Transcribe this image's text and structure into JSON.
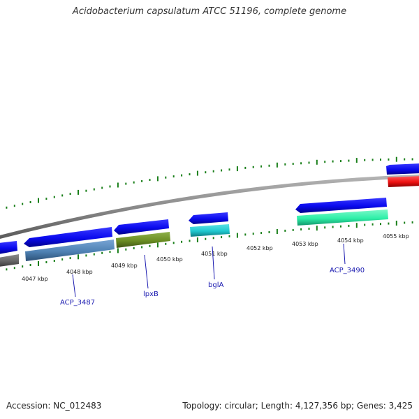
{
  "title": "Acidobacterium capsulatum ATCC 51196, complete genome",
  "footer": {
    "accession": "Accession: NC_012483",
    "summary": "Topology: circular; Length: 4,127,356 bp; Genes: 3,425"
  },
  "tick_labels": [
    "4047 kbp",
    "4048 kbp",
    "4049 kbp",
    "4050 kbp",
    "4051 kbp",
    "4052 kbp",
    "4053 kbp",
    "4054 kbp",
    "4055 kbp"
  ],
  "gene_labels": [
    "ACP_3487",
    "lpxB",
    "bglA",
    "ACP_3490"
  ],
  "colors": {
    "cds_forward": "#0a0aee",
    "backbone": "#8c8c8c",
    "tick": "#1a7f1a",
    "label": "#1a1ab0",
    "feature_gray": "#666666",
    "feature_steelblue": "#4f82b4",
    "feature_olive": "#6b8e23",
    "feature_cyan": "#1fc8cf",
    "feature_aquamarine": "#2ef0a8",
    "feature_red": "#ee1111"
  }
}
